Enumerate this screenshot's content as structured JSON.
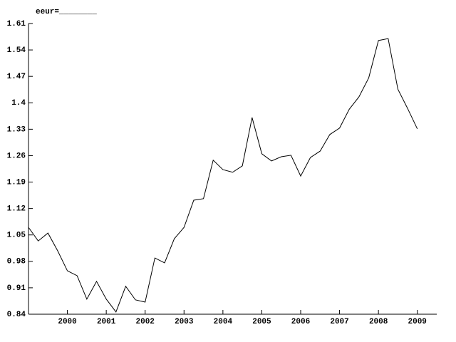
{
  "chart_data": {
    "type": "line",
    "title": "eeur=________",
    "x": [
      1999,
      1999.25,
      1999.5,
      1999.75,
      2000,
      2000.25,
      2000.5,
      2000.75,
      2001,
      2001.25,
      2001.5,
      2001.75,
      2002,
      2002.25,
      2002.5,
      2002.75,
      2003,
      2003.25,
      2003.5,
      2003.75,
      2004,
      2004.25,
      2004.5,
      2004.75,
      2005,
      2005.25,
      2005.5,
      2005.75,
      2006,
      2006.25,
      2006.5,
      2006.75,
      2007,
      2007.25,
      2007.5,
      2007.75,
      2008,
      2008.25,
      2008.5,
      2008.75,
      2009
    ],
    "series": [
      {
        "name": "eeur",
        "color": "#000000",
        "values": [
          1.07,
          1.034,
          1.055,
          1.008,
          0.955,
          0.942,
          0.88,
          0.927,
          0.88,
          0.846,
          0.914,
          0.878,
          0.872,
          0.989,
          0.976,
          1.04,
          1.07,
          1.142,
          1.146,
          1.248,
          1.223,
          1.216,
          1.233,
          1.361,
          1.265,
          1.246,
          1.257,
          1.261,
          1.206,
          1.255,
          1.272,
          1.316,
          1.333,
          1.383,
          1.416,
          1.466,
          1.565,
          1.57,
          1.436,
          1.385,
          1.331
        ]
      }
    ],
    "xlim": [
      1999,
      2009.5
    ],
    "xticks": [
      2000,
      2001,
      2002,
      2003,
      2004,
      2005,
      2006,
      2007,
      2008,
      2009
    ],
    "ylim": [
      0.84,
      1.61
    ],
    "yticks": [
      0.84,
      0.91,
      0.98,
      1.05,
      1.12,
      1.19,
      1.26,
      1.33,
      1.4,
      1.47,
      1.54,
      1.61
    ],
    "grid": false
  }
}
